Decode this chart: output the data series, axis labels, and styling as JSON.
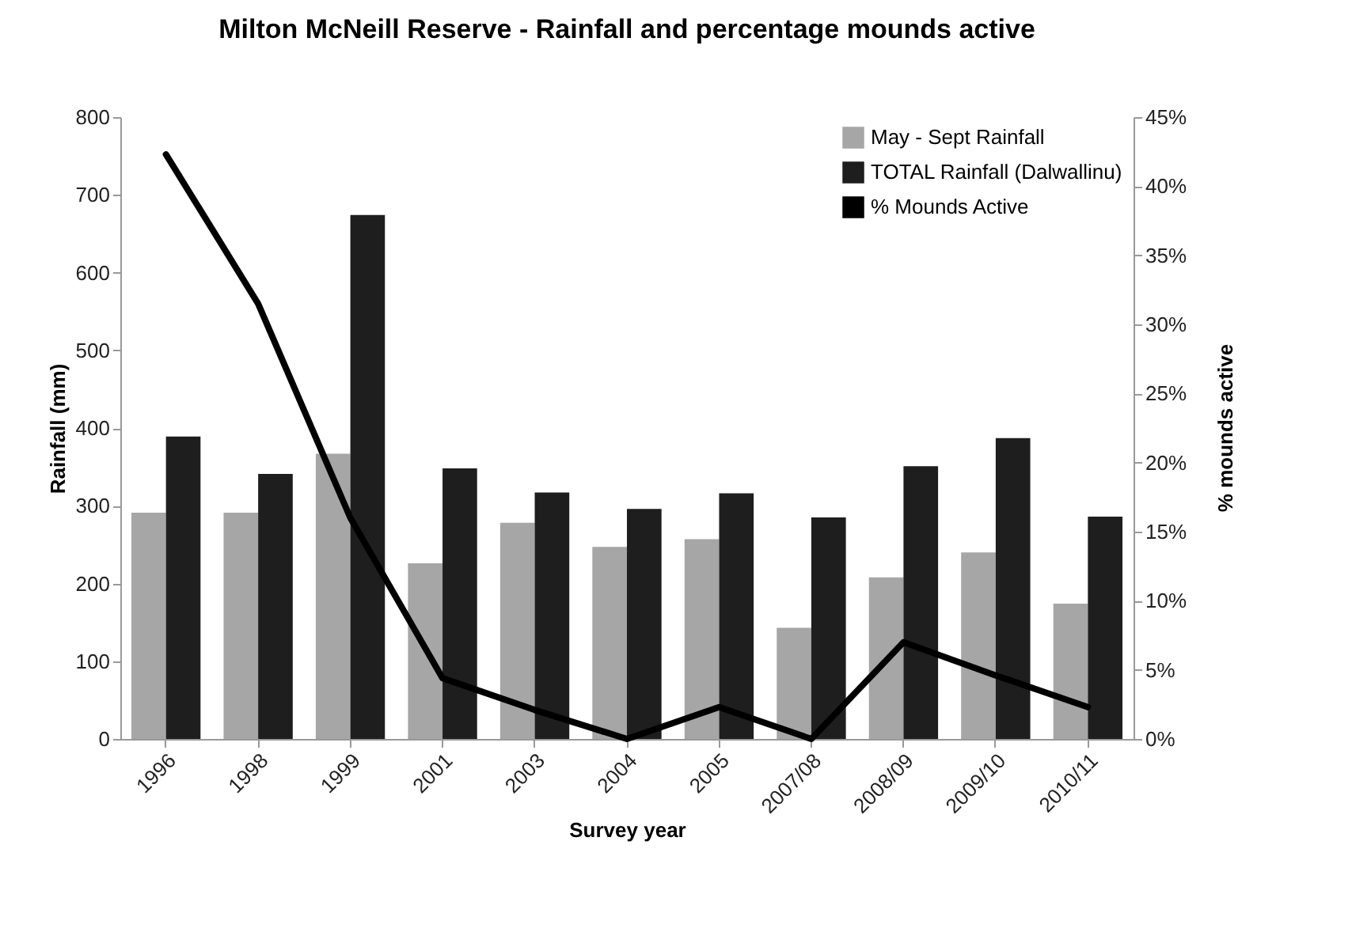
{
  "chart_data": {
    "type": "bar",
    "title": "Milton McNeill Reserve - Rainfall and percentage mounds active",
    "xlabel": "Survey year",
    "ylabel": "Rainfall (mm)",
    "y2label": "% mounds active",
    "categories": [
      "1996",
      "1998",
      "1999",
      "2001",
      "2003",
      "2004",
      "2005",
      "2007/08",
      "2008/09",
      "2009/10",
      "2010/11"
    ],
    "series": [
      {
        "name": "May - Sept Rainfall",
        "type": "bar",
        "color": "#a6a6a6",
        "values": [
          291,
          291,
          367,
          226,
          278,
          247,
          257,
          143,
          208,
          240,
          174
        ]
      },
      {
        "name": "TOTAL Rainfall (Dalwallinu)",
        "type": "bar",
        "color": "#1e1e1e",
        "values": [
          389,
          341,
          674,
          348,
          317,
          296,
          316,
          285,
          351,
          387,
          286
        ]
      },
      {
        "name": "% Mounds Active",
        "type": "line",
        "axis": "y2",
        "color": "#000000",
        "values": [
          42.3,
          31.5,
          16,
          4.4,
          2.1,
          0,
          2.3,
          0,
          7,
          4.6,
          2.3
        ]
      }
    ],
    "ylim": [
      0,
      800
    ],
    "yticks": [
      0,
      100,
      200,
      300,
      400,
      500,
      600,
      700,
      800
    ],
    "y2lim": [
      0,
      45
    ],
    "y2ticks": [
      {
        "value": 0,
        "label": "0%"
      },
      {
        "value": 5,
        "label": "5%"
      },
      {
        "value": 10,
        "label": "10%"
      },
      {
        "value": 15,
        "label": "15%"
      },
      {
        "value": 20,
        "label": "20%"
      },
      {
        "value": 25,
        "label": "25%"
      },
      {
        "value": 30,
        "label": "30%"
      },
      {
        "value": 35,
        "label": "35%"
      },
      {
        "value": 40,
        "label": "40%"
      },
      {
        "value": 45,
        "label": "45%"
      }
    ],
    "grid": false,
    "legend": "top right",
    "marker": "none",
    "line_style": "solid"
  }
}
